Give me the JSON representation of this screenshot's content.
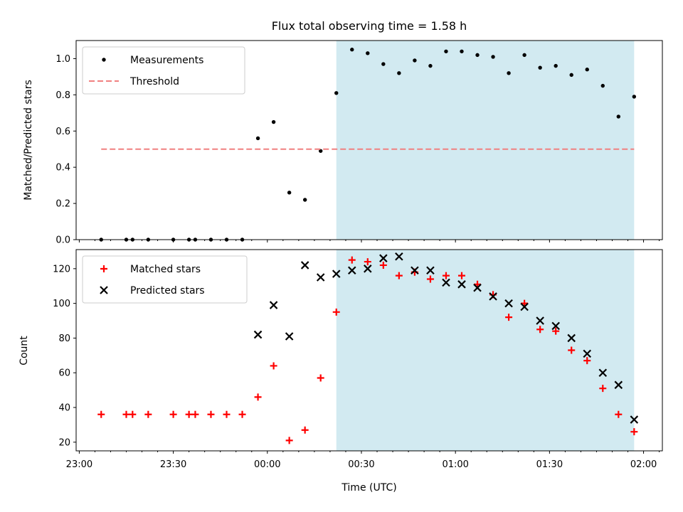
{
  "chart_data": {
    "type": "scatter",
    "title": "Flux total observing time = 1.58 h",
    "xlabel": "Time (UTC)",
    "xlim": [
      "22:59",
      "02:06"
    ],
    "x_ticks": [
      "23:00",
      "23:30",
      "00:00",
      "00:30",
      "01:00",
      "01:30",
      "02:00"
    ],
    "shaded_span": {
      "start": "00:22",
      "end": "01:57",
      "color": "#add8e6"
    },
    "panels": [
      {
        "ylabel": "Matched/Predicted stars",
        "ylim": [
          0,
          1.1
        ],
        "y_ticks": [
          "0.0",
          "0.2",
          "0.4",
          "0.6",
          "0.8",
          "1.0"
        ],
        "legend_position": "upper left",
        "series": [
          {
            "name": "Measurements",
            "marker": "dot",
            "color": "#000000",
            "x": [
              "23:07",
              "23:15",
              "23:17",
              "23:22",
              "23:30",
              "23:35",
              "23:37",
              "23:42",
              "23:47",
              "23:52",
              "23:57",
              "00:02",
              "00:07",
              "00:12",
              "00:17",
              "00:22",
              "00:27",
              "00:32",
              "00:37",
              "00:42",
              "00:47",
              "00:52",
              "00:57",
              "01:02",
              "01:07",
              "01:12",
              "01:17",
              "01:22",
              "01:27",
              "01:32",
              "01:37",
              "01:42",
              "01:47",
              "01:52",
              "01:57"
            ],
            "y": [
              0,
              0,
              0,
              0,
              0,
              0,
              0,
              0,
              0,
              0,
              0.56,
              0.65,
              0.26,
              0.22,
              0.49,
              0.81,
              1.05,
              1.03,
              0.97,
              0.92,
              0.99,
              0.96,
              1.04,
              1.04,
              1.02,
              1.01,
              0.92,
              1.02,
              0.95,
              0.96,
              0.91,
              0.94,
              0.85,
              0.68,
              0.79
            ]
          },
          {
            "name": "Threshold",
            "marker": "dashed-line",
            "color": "#f08080",
            "x": [
              "23:07",
              "01:57"
            ],
            "y": [
              0.5,
              0.5
            ]
          }
        ]
      },
      {
        "ylabel": "Count",
        "ylim": [
          15,
          131
        ],
        "y_ticks": [
          "20",
          "40",
          "60",
          "80",
          "100",
          "120"
        ],
        "legend_position": "upper left",
        "series": [
          {
            "name": "Matched stars",
            "marker": "plus",
            "color": "#ff0000",
            "x": [
              "23:07",
              "23:15",
              "23:17",
              "23:22",
              "23:30",
              "23:35",
              "23:37",
              "23:42",
              "23:47",
              "23:52",
              "23:57",
              "00:02",
              "00:07",
              "00:12",
              "00:17",
              "00:22",
              "00:27",
              "00:32",
              "00:37",
              "00:42",
              "00:47",
              "00:52",
              "00:57",
              "01:02",
              "01:07",
              "01:12",
              "01:17",
              "01:22",
              "01:27",
              "01:32",
              "01:37",
              "01:42",
              "01:47",
              "01:52",
              "01:57"
            ],
            "y": [
              36,
              36,
              36,
              36,
              36,
              36,
              36,
              36,
              36,
              36,
              46,
              64,
              21,
              27,
              57,
              95,
              125,
              124,
              122,
              116,
              118,
              114,
              116,
              116,
              111,
              105,
              92,
              100,
              85,
              84,
              73,
              67,
              51,
              36,
              26
            ]
          },
          {
            "name": "Predicted stars",
            "marker": "x",
            "color": "#000000",
            "x": [
              "23:57",
              "00:02",
              "00:07",
              "00:12",
              "00:17",
              "00:22",
              "00:27",
              "00:32",
              "00:37",
              "00:42",
              "00:47",
              "00:52",
              "00:57",
              "01:02",
              "01:07",
              "01:12",
              "01:17",
              "01:22",
              "01:27",
              "01:32",
              "01:37",
              "01:42",
              "01:47",
              "01:52",
              "01:57"
            ],
            "y": [
              82,
              99,
              81,
              122,
              115,
              117,
              119,
              120,
              126,
              127,
              119,
              119,
              112,
              111,
              109,
              104,
              100,
              98,
              90,
              87,
              80,
              71,
              60,
              53,
              33
            ]
          }
        ]
      }
    ]
  }
}
